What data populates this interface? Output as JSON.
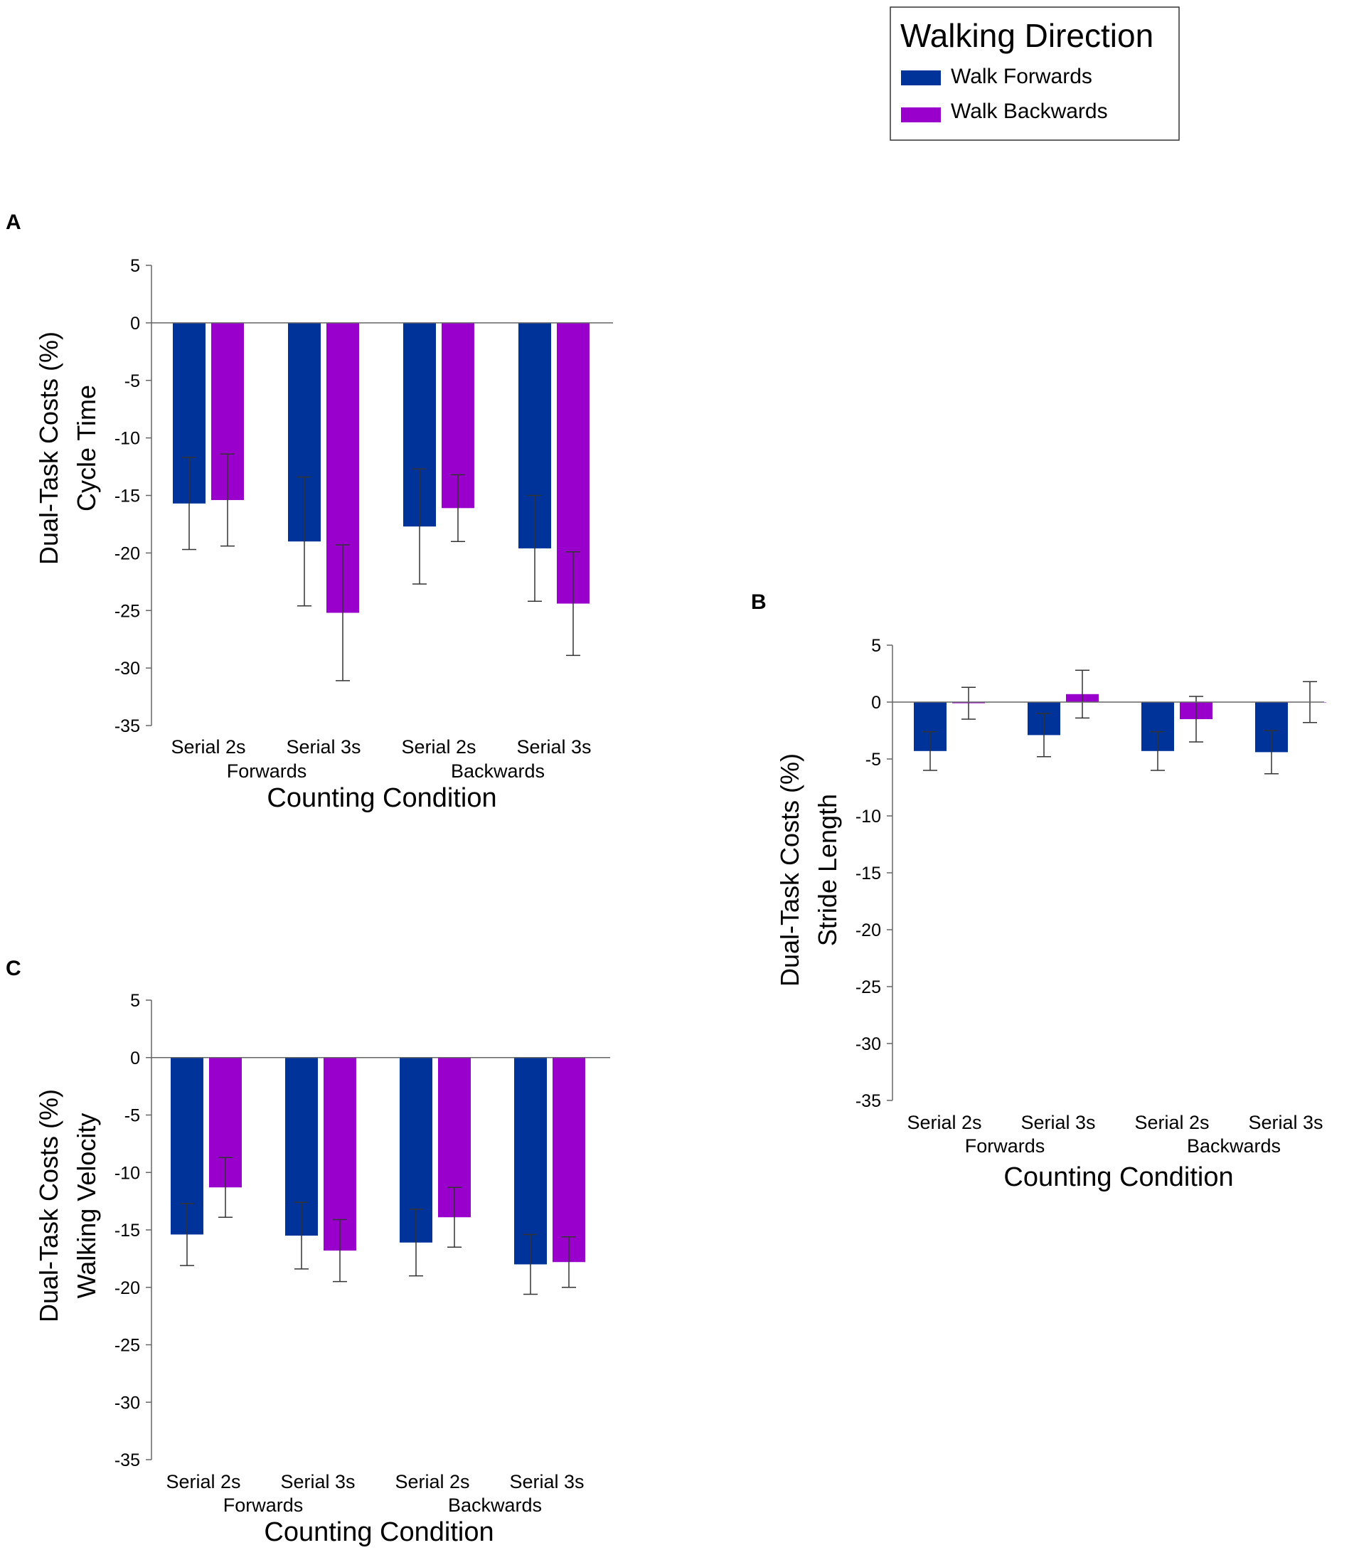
{
  "legend": {
    "title": "Walking Direction",
    "entries": [
      {
        "name": "Walk Forwards",
        "color": "#003399"
      },
      {
        "name": "Walk Backwards",
        "color": "#9900CC"
      }
    ]
  },
  "chart_data": [
    {
      "panel": "A",
      "type": "bar",
      "title": "",
      "ylabel_line1": "Dual-Task Costs (%)",
      "ylabel_line2": "Cycle Time",
      "xlabel": "Counting Condition",
      "categories": [
        "Serial 2s",
        "Serial 3s",
        "Serial 2s",
        "Serial 3s"
      ],
      "groups": [
        "Forwards",
        "Backwards"
      ],
      "ylim": [
        -35,
        5
      ],
      "yticks": [
        5,
        0,
        -5,
        -10,
        -15,
        -20,
        -25,
        -30,
        -35
      ],
      "series": [
        {
          "name": "Walk Forwards",
          "values": [
            -15.7,
            -19.0,
            -17.7,
            -19.6
          ],
          "errors": [
            4.0,
            5.6,
            5.0,
            4.6
          ]
        },
        {
          "name": "Walk Backwards",
          "values": [
            -15.4,
            -25.2,
            -16.1,
            -24.4
          ],
          "errors": [
            4.0,
            5.9,
            2.9,
            4.5
          ]
        }
      ]
    },
    {
      "panel": "B",
      "type": "bar",
      "title": "",
      "ylabel_line1": "Dual-Task Costs (%)",
      "ylabel_line2": "Stride Length",
      "xlabel": "Counting Condition",
      "categories": [
        "Serial 2s",
        "Serial 3s",
        "Serial 2s",
        "Serial 3s"
      ],
      "groups": [
        "Forwards",
        "Backwards"
      ],
      "ylim": [
        -35,
        5
      ],
      "yticks": [
        5,
        0,
        -5,
        -10,
        -15,
        -20,
        -25,
        -30,
        -35
      ],
      "series": [
        {
          "name": "Walk Forwards",
          "values": [
            -4.3,
            -2.9,
            -4.3,
            -4.4
          ],
          "errors": [
            1.7,
            1.9,
            1.7,
            1.9
          ]
        },
        {
          "name": "Walk Backwards",
          "values": [
            -0.1,
            0.7,
            -1.5,
            0.0
          ],
          "errors": [
            1.4,
            2.1,
            2.0,
            1.8
          ]
        }
      ]
    },
    {
      "panel": "C",
      "type": "bar",
      "title": "",
      "ylabel_line1": "Dual-Task Costs (%)",
      "ylabel_line2": "Walking Velocity",
      "xlabel": "Counting Condition",
      "categories": [
        "Serial 2s",
        "Serial 3s",
        "Serial 2s",
        "Serial 3s"
      ],
      "groups": [
        "Forwards",
        "Backwards"
      ],
      "ylim": [
        -35,
        5
      ],
      "yticks": [
        5,
        0,
        -5,
        -10,
        -15,
        -20,
        -25,
        -30,
        -35
      ],
      "series": [
        {
          "name": "Walk Forwards",
          "values": [
            -15.4,
            -15.5,
            -16.1,
            -18.0
          ],
          "errors": [
            2.7,
            2.9,
            2.9,
            2.6
          ]
        },
        {
          "name": "Walk Backwards",
          "values": [
            -11.3,
            -16.8,
            -13.9,
            -17.8
          ],
          "errors": [
            2.6,
            2.7,
            2.6,
            2.2
          ]
        }
      ]
    }
  ]
}
